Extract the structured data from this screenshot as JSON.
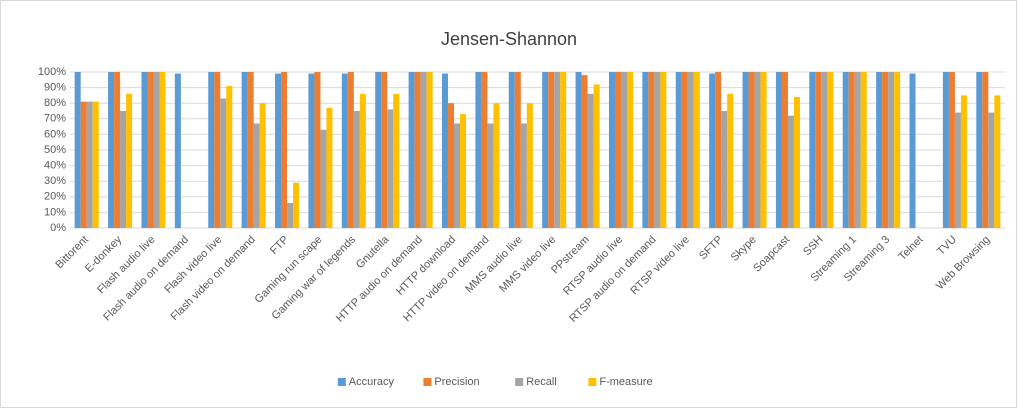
{
  "chart_data": {
    "type": "bar",
    "title": "Jensen-Shannon",
    "categories": [
      "Bittorent",
      "E-donkey",
      "Flash audio live",
      "Flash audio on demand",
      "Flash video live",
      "Flash video on demand",
      "FTP",
      "Gaming run scape",
      "Gaming war of legends",
      "Gnutella",
      "HTTP audio on demand",
      "HTTP download",
      "HTTP video on demand",
      "MMS audio live",
      "MMS video live",
      "PPstream",
      "RTSP audio live",
      "RTSP audio on demand",
      "RTSP video live",
      "SFTP",
      "Skype",
      "Soapcast",
      "SSH",
      "Streaming 1",
      "Streaming 3",
      "Telnet",
      "TVU",
      "Web Browsing"
    ],
    "series": [
      {
        "name": "Accuracy",
        "color": "#5b9bd5",
        "values": [
          100,
          100,
          100,
          99,
          100,
          100,
          99,
          99,
          99,
          100,
          100,
          99,
          100,
          100,
          100,
          100,
          100,
          100,
          100,
          99,
          100,
          100,
          100,
          100,
          100,
          99,
          100,
          100
        ]
      },
      {
        "name": "Precision",
        "color": "#ed7d31",
        "values": [
          81,
          100,
          100,
          0,
          100,
          100,
          100,
          100,
          100,
          100,
          100,
          80,
          100,
          100,
          100,
          98,
          100,
          100,
          100,
          100,
          100,
          100,
          100,
          100,
          100,
          0,
          100,
          100
        ]
      },
      {
        "name": "Recall",
        "color": "#a5a5a5",
        "values": [
          81,
          75,
          100,
          0,
          83,
          67,
          16,
          63,
          75,
          76,
          100,
          67,
          67,
          67,
          100,
          86,
          100,
          100,
          100,
          75,
          100,
          72,
          100,
          100,
          100,
          0,
          74,
          74
        ]
      },
      {
        "name": "F-measure",
        "color": "#ffc000",
        "values": [
          81,
          86,
          100,
          0,
          91,
          80,
          29,
          77,
          86,
          86,
          100,
          73,
          80,
          80,
          100,
          92,
          100,
          100,
          100,
          86,
          100,
          84,
          100,
          100,
          100,
          0,
          85,
          85
        ]
      }
    ],
    "ylim": [
      0,
      100
    ],
    "yticks": [
      {
        "value": 0,
        "label": "0%"
      },
      {
        "value": 10,
        "label": "10%"
      },
      {
        "value": 20,
        "label": "20%"
      },
      {
        "value": 30,
        "label": "30%"
      },
      {
        "value": 40,
        "label": "40%"
      },
      {
        "value": 50,
        "label": "50%"
      },
      {
        "value": 60,
        "label": "60%"
      },
      {
        "value": 70,
        "label": "70%"
      },
      {
        "value": 80,
        "label": "80%"
      },
      {
        "value": 90,
        "label": "90%"
      },
      {
        "value": 100,
        "label": "100%"
      }
    ],
    "grid": true,
    "legend": "bottom"
  }
}
